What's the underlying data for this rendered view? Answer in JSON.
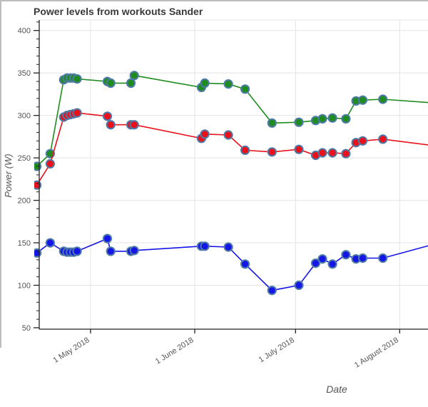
{
  "chart": {
    "title": "Power levels from workouts Sander",
    "y_axis_label": "Power (W)",
    "x_axis_label": "Date"
  },
  "chart_data": {
    "type": "line",
    "title": "Power levels from workouts Sander",
    "xlabel": "Date",
    "ylabel": "Power (W)",
    "ylim": [
      45,
      415
    ],
    "grid": true,
    "legend": "none",
    "y_ticks": [
      400,
      350,
      300,
      250,
      200,
      150,
      100,
      50
    ],
    "y_minor_tick_step": 10,
    "x_tick_labels": [
      "1 May 2018",
      "1 June 2018",
      "1 July 2018",
      "1 August 2018"
    ],
    "x_tick_days": [
      16,
      47,
      77,
      108
    ],
    "x_dates": [
      "15 Apr 2018",
      "19 Apr 2018",
      "23 Apr 2018",
      "24 Apr 2018",
      "25 Apr 2018",
      "26 Apr 2018",
      "27 Apr 2018",
      "6 May 2018",
      "7 May 2018",
      "13 May 2018",
      "14 May 2018",
      "3 Jun 2018",
      "4 Jun 2018",
      "11 Jun 2018",
      "16 Jun 2018",
      "24 Jun 2018",
      "2 Jul 2018",
      "7 Jul 2018",
      "9 Jul 2018",
      "12 Jul 2018",
      "16 Jul 2018",
      "19 Jul 2018",
      "21 Jul 2018",
      "27 Jul 2018"
    ],
    "day_offsets": [
      0,
      4,
      8,
      9,
      10,
      11,
      12,
      21,
      22,
      28,
      29,
      49,
      50,
      57,
      62,
      70,
      78,
      83,
      85,
      88,
      92,
      95,
      97,
      103
    ],
    "edge_day": 117,
    "marker_outline_color": "#4d7ba6",
    "grid_color": "#e4e4e4",
    "axis_color": "#222222",
    "tick_text_color": "#545454",
    "series": [
      {
        "name": "green",
        "color": "#1e8c1e",
        "values": [
          240,
          255,
          342,
          344,
          344,
          344,
          343,
          340,
          338,
          338,
          347,
          333,
          338,
          337,
          331,
          291,
          292,
          294,
          296,
          297,
          296,
          317,
          318,
          319
        ],
        "edge_value": 315
      },
      {
        "name": "red",
        "color": "#e8111c",
        "values": [
          218,
          243,
          298,
          300,
          301,
          302,
          303,
          299,
          289,
          289,
          289,
          273,
          278,
          277,
          259,
          257,
          260,
          253,
          256,
          256,
          255,
          268,
          270,
          272
        ],
        "edge_value": 265
      },
      {
        "name": "blue",
        "color": "#1515e8",
        "values": [
          138,
          150,
          140,
          139,
          139,
          139,
          140,
          155,
          140,
          140,
          141,
          146,
          146,
          145,
          125,
          94,
          100,
          126,
          131,
          125,
          136,
          131,
          132,
          132
        ],
        "edge_value": 147
      }
    ]
  }
}
